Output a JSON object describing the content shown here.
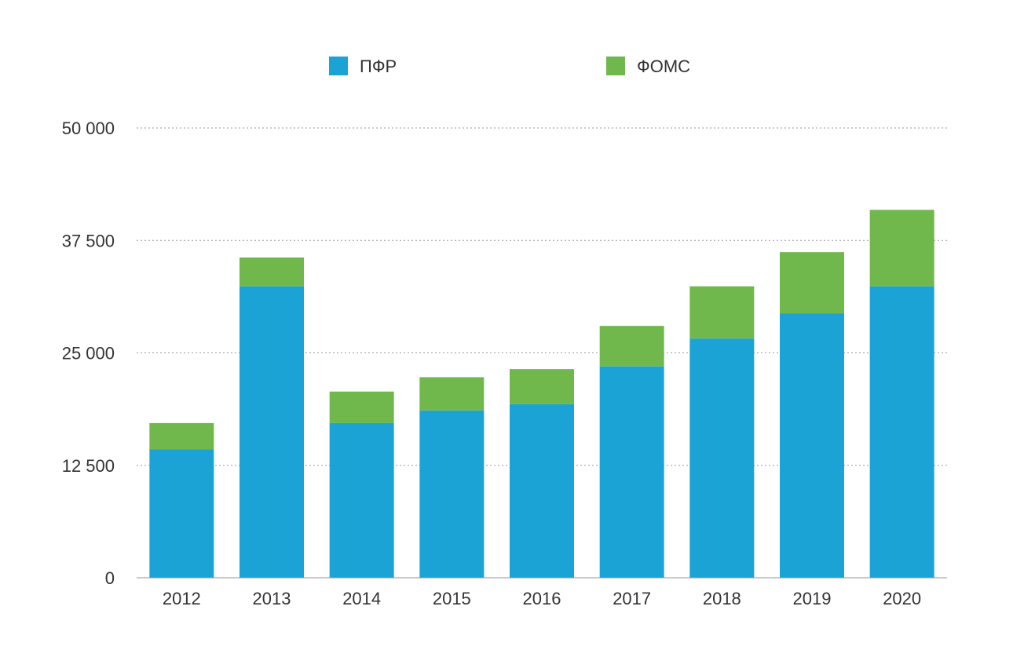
{
  "chart_data": {
    "type": "bar",
    "stacked": true,
    "title": "",
    "xlabel": "",
    "ylabel": "",
    "categories": [
      "2012",
      "2013",
      "2014",
      "2015",
      "2016",
      "2017",
      "2018",
      "2019",
      "2020"
    ],
    "series": [
      {
        "name": "ПФР",
        "color": "#1ca3d6",
        "values": [
          14300,
          32400,
          17200,
          18600,
          19300,
          23500,
          26600,
          29400,
          32400
        ]
      },
      {
        "name": "ФОМС",
        "color": "#71b84c",
        "values": [
          2900,
          3200,
          3500,
          3700,
          3900,
          4500,
          5800,
          6800,
          8500
        ]
      }
    ],
    "ylim": [
      0,
      50000
    ],
    "yticks": [
      0,
      12500,
      25000,
      37500,
      50000
    ],
    "ytick_labels": [
      "0",
      "12 500",
      "25 000",
      "37 500",
      "50 000"
    ],
    "grid": true,
    "legend_position": "top"
  }
}
